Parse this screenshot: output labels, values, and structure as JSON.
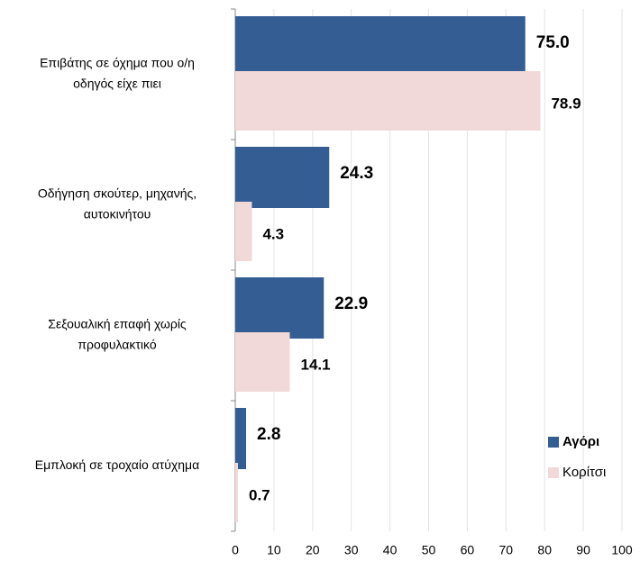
{
  "chart_data": {
    "type": "bar",
    "orientation": "horizontal",
    "categories": [
      [
        "Επιβάτης σε όχημα  που ο/η",
        "οδηγός είχε πιει"
      ],
      [
        "Οδήγηση σκούτερ, μηχανής,",
        "αυτοκινήτου"
      ],
      [
        "Σεξουαλική επαφή χωρίς",
        "προφυλακτικό"
      ],
      [
        "Εμπλοκή σε τροχαίο ατύχημα"
      ]
    ],
    "series": [
      {
        "name": "Αγόρι",
        "color": "#345e93",
        "label_color": "#2f5b92",
        "values": [
          75.0,
          24.3,
          22.9,
          2.8
        ],
        "value_labels": [
          "75.0",
          "24.3",
          "22.9",
          "2.8"
        ]
      },
      {
        "name": "Κορίτσι",
        "color": "#f2d9d9",
        "label_color": "#df9d9d",
        "values": [
          78.9,
          4.3,
          14.1,
          0.7
        ],
        "value_labels": [
          "78.9",
          "4.3",
          "14.1",
          "0.7"
        ]
      }
    ],
    "xlim": [
      0,
      100
    ],
    "xticks": [
      0,
      10,
      20,
      30,
      40,
      50,
      60,
      70,
      80,
      90,
      100
    ],
    "grid": true
  }
}
